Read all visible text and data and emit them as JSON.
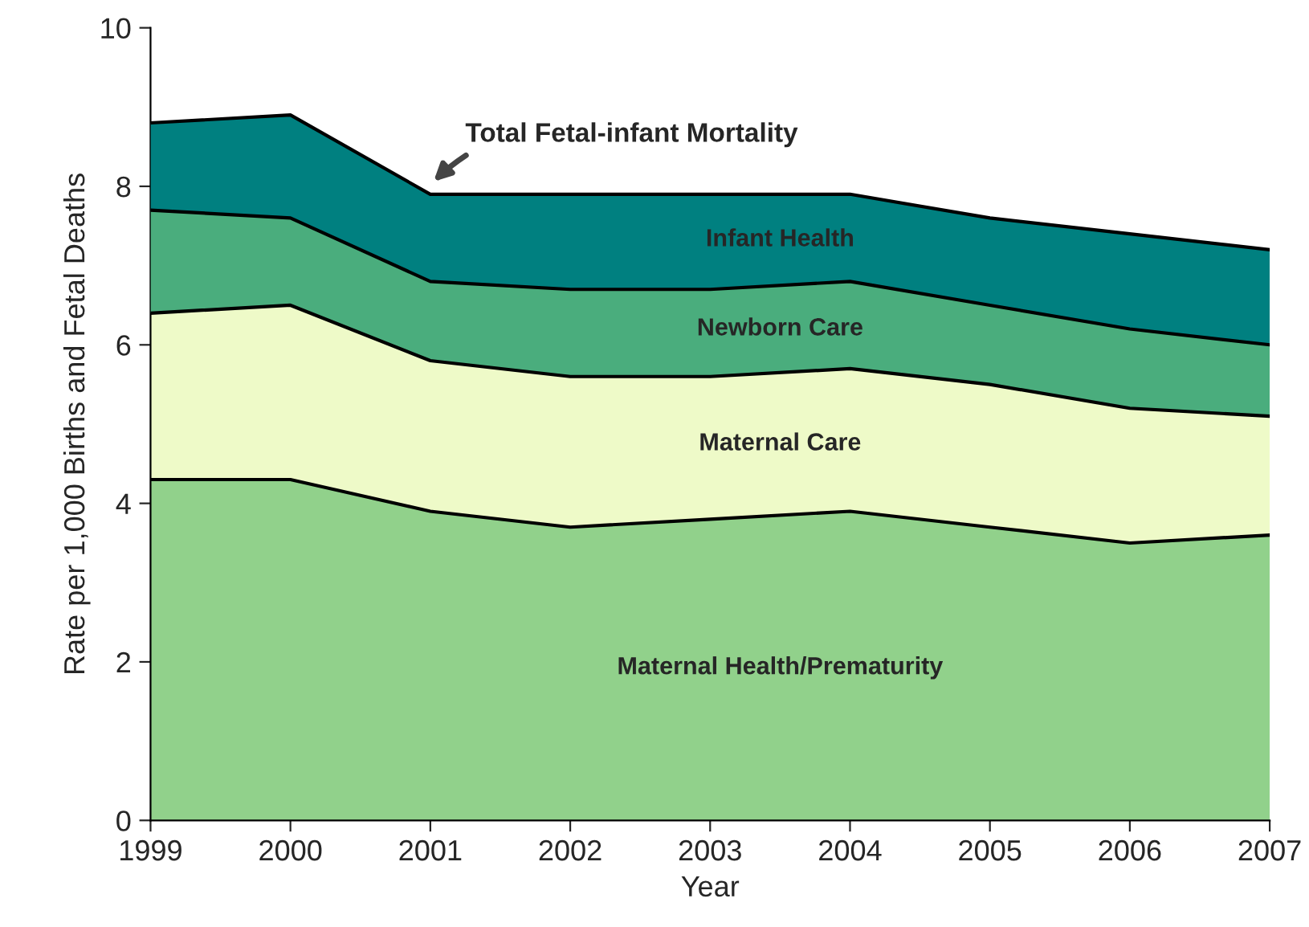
{
  "chart_data": {
    "type": "area",
    "stacked": true,
    "xlabel": "Year",
    "ylabel": "Rate per 1,000 Births and Fetal Deaths",
    "x": [
      1999,
      2000,
      2001,
      2002,
      2003,
      2004,
      2005,
      2006,
      2007
    ],
    "series": [
      {
        "name": "Maternal Health/Prematurity",
        "color": "#91d18b",
        "values": [
          4.3,
          4.3,
          3.9,
          3.7,
          3.8,
          3.9,
          3.7,
          3.5,
          3.6
        ]
      },
      {
        "name": "Maternal Care",
        "color": "#eefac8",
        "values": [
          2.1,
          2.2,
          1.9,
          1.9,
          1.8,
          1.8,
          1.8,
          1.7,
          1.5
        ]
      },
      {
        "name": "Newborn Care",
        "color": "#4aad7d",
        "values": [
          1.3,
          1.1,
          1.0,
          1.1,
          1.1,
          1.1,
          1.0,
          1.0,
          0.9
        ]
      },
      {
        "name": "Infant Health",
        "color": "#008080",
        "values": [
          1.1,
          1.3,
          1.1,
          1.2,
          1.2,
          1.1,
          1.1,
          1.2,
          1.2
        ]
      }
    ],
    "annotations": [
      {
        "text": "Total Fetal-infant Mortality",
        "x": 2001,
        "y": 7.9
      }
    ],
    "xlim": [
      1999,
      2007
    ],
    "xticks": [
      1999,
      2000,
      2001,
      2002,
      2003,
      2004,
      2005,
      2006,
      2007
    ],
    "ylim": [
      0,
      10
    ],
    "yticks": [
      0,
      2,
      4,
      6,
      8,
      10
    ],
    "grid": false,
    "legend": false
  }
}
